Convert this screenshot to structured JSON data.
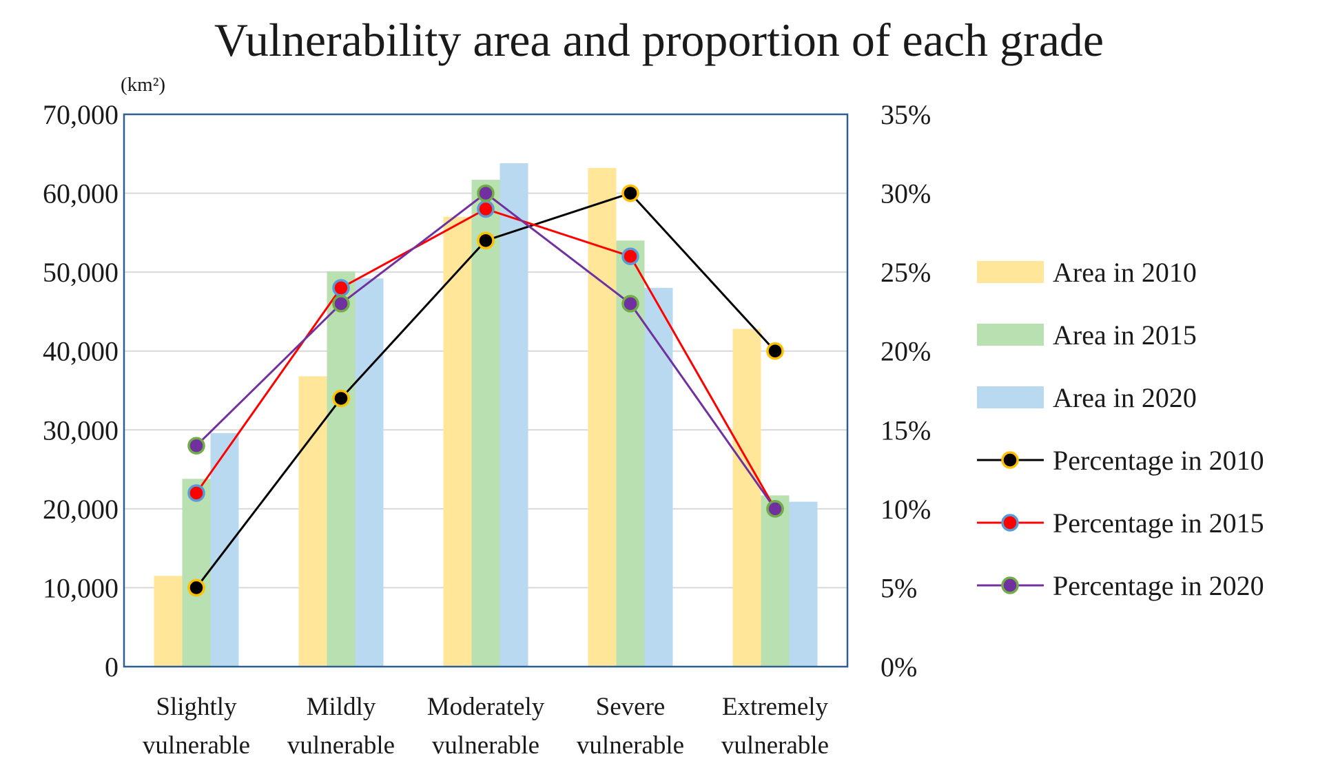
{
  "chart_data": {
    "type": "bar",
    "title": "Vulnerability area and proportion of each grade",
    "y_unit_label": "(km²)",
    "categories": [
      [
        "Slightly",
        "vulnerable"
      ],
      [
        "Mildly",
        "vulnerable"
      ],
      [
        "Moderately",
        "vulnerable"
      ],
      [
        "Severe",
        "vulnerable"
      ],
      [
        "Extremely",
        "vulnerable"
      ]
    ],
    "ylim": [
      0,
      70000
    ],
    "y_ticks": [
      "0",
      "10,000",
      "20,000",
      "30,000",
      "40,000",
      "50,000",
      "60,000",
      "70,000"
    ],
    "y2lim": [
      0,
      35
    ],
    "y2_ticks": [
      "0%",
      "5%",
      "10%",
      "15%",
      "20%",
      "25%",
      "30%",
      "35%"
    ],
    "grid": true,
    "legend_position": "right",
    "bar_series": [
      {
        "name": "Area in 2010",
        "color": "#ffe699",
        "values": [
          11500,
          36800,
          57000,
          63200,
          42800
        ]
      },
      {
        "name": "Area in 2015",
        "color": "#b9e0b0",
        "values": [
          23800,
          50100,
          61700,
          54000,
          21700
        ]
      },
      {
        "name": "Area in 2020",
        "color": "#b8d9f0",
        "values": [
          29600,
          49200,
          63800,
          48000,
          20900
        ]
      }
    ],
    "line_series": [
      {
        "name": "Percentage in 2010",
        "line_color": "#000000",
        "marker_fill": "#000000",
        "marker_edge": "#ffc000",
        "values": [
          5,
          17,
          27,
          30,
          20
        ]
      },
      {
        "name": "Percentage in 2015",
        "line_color": "#ff0000",
        "marker_fill": "#ff0000",
        "marker_edge": "#5b9bd5",
        "values": [
          11,
          24,
          29,
          26,
          10
        ]
      },
      {
        "name": "Percentage in 2020",
        "line_color": "#7030a0",
        "marker_fill": "#7030a0",
        "marker_edge": "#70ad47",
        "values": [
          14,
          23,
          30,
          23,
          10
        ]
      }
    ]
  }
}
